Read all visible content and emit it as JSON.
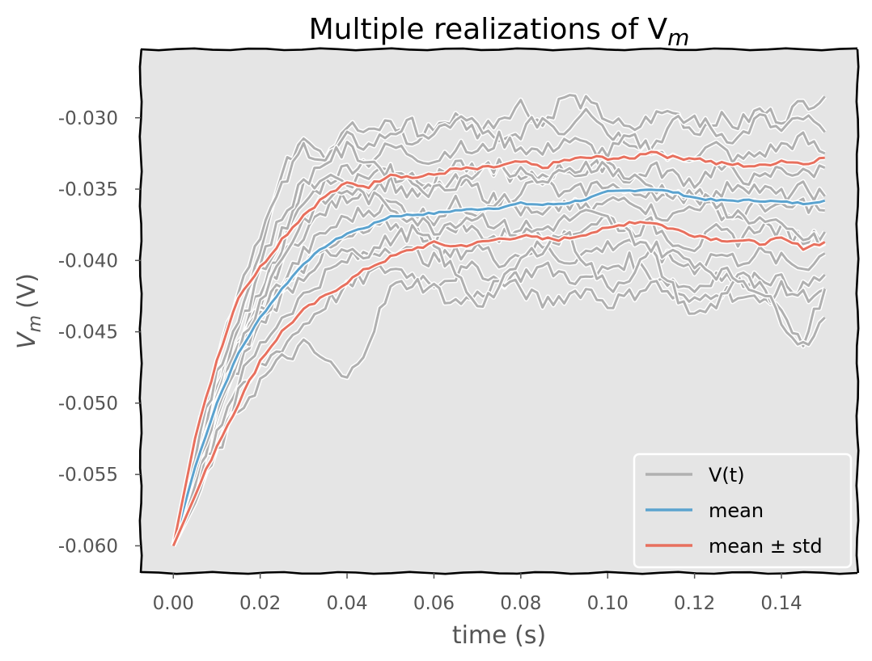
{
  "chart_data": {
    "type": "line",
    "title": "Multiple realizations of V",
    "title_subscript": "m",
    "xlabel": "time (s)",
    "ylabel": "V",
    "ylabel_subscript": "m",
    "ylabel_unit": "(V)",
    "xlim": [
      -0.0075,
      0.1575
    ],
    "ylim": [
      -0.0619,
      -0.0252
    ],
    "xticks": [
      0.0,
      0.02,
      0.04,
      0.06,
      0.08,
      0.1,
      0.12,
      0.14
    ],
    "xtick_labels": [
      "0.00",
      "0.02",
      "0.04",
      "0.06",
      "0.08",
      "0.10",
      "0.12",
      "0.14"
    ],
    "yticks": [
      -0.06,
      -0.055,
      -0.05,
      -0.045,
      -0.04,
      -0.035,
      -0.03
    ],
    "ytick_labels": [
      "-0.060",
      "-0.055",
      "-0.050",
      "-0.045",
      "-0.040",
      "-0.035",
      "-0.030"
    ],
    "grid": false,
    "legend_position": "lower-right",
    "colors": {
      "realization": "#b0b0b0",
      "mean": "#5ba3cf",
      "std": "#e8705e",
      "plot_bg": "#e5e5e5"
    },
    "legend": [
      "V(t)",
      "mean",
      "mean ± std"
    ],
    "x": [
      0.0,
      0.005,
      0.01,
      0.015,
      0.02,
      0.025,
      0.03,
      0.035,
      0.04,
      0.045,
      0.05,
      0.055,
      0.06,
      0.065,
      0.07,
      0.075,
      0.08,
      0.085,
      0.09,
      0.095,
      0.1,
      0.105,
      0.11,
      0.115,
      0.12,
      0.125,
      0.13,
      0.135,
      0.14,
      0.145,
      0.15
    ],
    "series": [
      {
        "name": "mean",
        "values": [
          -0.06,
          -0.0545,
          -0.05,
          -0.0465,
          -0.044,
          -0.042,
          -0.0402,
          -0.039,
          -0.0381,
          -0.0376,
          -0.0369,
          -0.0368,
          -0.0367,
          -0.0365,
          -0.0364,
          -0.0363,
          -0.036,
          -0.0361,
          -0.036,
          -0.0357,
          -0.0352,
          -0.0351,
          -0.035,
          -0.0352,
          -0.0356,
          -0.0358,
          -0.0358,
          -0.0358,
          -0.0359,
          -0.036,
          -0.0358
        ]
      },
      {
        "name": "mean + std",
        "values": [
          -0.06,
          -0.0525,
          -0.047,
          -0.0425,
          -0.0405,
          -0.0385,
          -0.0368,
          -0.0355,
          -0.0346,
          -0.0348,
          -0.0339,
          -0.0342,
          -0.034,
          -0.0336,
          -0.0336,
          -0.0334,
          -0.0331,
          -0.0335,
          -0.033,
          -0.0328,
          -0.0328,
          -0.0329,
          -0.0323,
          -0.0328,
          -0.0328,
          -0.0332,
          -0.0333,
          -0.0334,
          -0.033,
          -0.0332,
          -0.0328
        ]
      },
      {
        "name": "mean - std",
        "values": [
          -0.06,
          -0.0565,
          -0.053,
          -0.05,
          -0.047,
          -0.045,
          -0.0435,
          -0.0425,
          -0.0415,
          -0.0405,
          -0.0398,
          -0.0392,
          -0.0388,
          -0.039,
          -0.0388,
          -0.0385,
          -0.0383,
          -0.0385,
          -0.0385,
          -0.0381,
          -0.0378,
          -0.0373,
          -0.0373,
          -0.0378,
          -0.0382,
          -0.0385,
          -0.0386,
          -0.0388,
          -0.0385,
          -0.0391,
          -0.0387
        ]
      },
      {
        "values": [
          -0.06,
          -0.054,
          -0.049,
          -0.044,
          -0.039,
          -0.034,
          -0.031,
          -0.0325,
          -0.0305,
          -0.0312,
          -0.0302,
          -0.032,
          -0.0305,
          -0.03,
          -0.031,
          -0.03,
          -0.029,
          -0.0305,
          -0.0285,
          -0.029,
          -0.03,
          -0.031,
          -0.03,
          -0.0295,
          -0.031,
          -0.03,
          -0.0305,
          -0.0295,
          -0.03,
          -0.029,
          -0.0285
        ]
      },
      {
        "values": [
          -0.06,
          -0.053,
          -0.047,
          -0.042,
          -0.038,
          -0.035,
          -0.032,
          -0.033,
          -0.0315,
          -0.032,
          -0.031,
          -0.0305,
          -0.0315,
          -0.03,
          -0.0305,
          -0.032,
          -0.031,
          -0.03,
          -0.031,
          -0.029,
          -0.031,
          -0.0315,
          -0.032,
          -0.0305,
          -0.03,
          -0.031,
          -0.0315,
          -0.03,
          -0.031,
          -0.03,
          -0.031
        ]
      },
      {
        "values": [
          -0.06,
          -0.055,
          -0.05,
          -0.046,
          -0.042,
          -0.039,
          -0.036,
          -0.0345,
          -0.0335,
          -0.033,
          -0.032,
          -0.0325,
          -0.033,
          -0.032,
          -0.0325,
          -0.0315,
          -0.032,
          -0.0325,
          -0.0315,
          -0.032,
          -0.0325,
          -0.0315,
          -0.032,
          -0.033,
          -0.0325,
          -0.032,
          -0.033,
          -0.0325,
          -0.032,
          -0.0315,
          -0.0325
        ]
      },
      {
        "values": [
          -0.06,
          -0.0545,
          -0.0495,
          -0.045,
          -0.041,
          -0.038,
          -0.035,
          -0.034,
          -0.0345,
          -0.034,
          -0.0335,
          -0.034,
          -0.0345,
          -0.033,
          -0.034,
          -0.0335,
          -0.0345,
          -0.034,
          -0.0335,
          -0.034,
          -0.033,
          -0.0345,
          -0.0335,
          -0.034,
          -0.0345,
          -0.0335,
          -0.034,
          -0.0345,
          -0.0335,
          -0.034,
          -0.0335
        ]
      },
      {
        "values": [
          -0.06,
          -0.055,
          -0.0505,
          -0.0465,
          -0.043,
          -0.04,
          -0.038,
          -0.0365,
          -0.0355,
          -0.035,
          -0.0345,
          -0.0355,
          -0.035,
          -0.0345,
          -0.035,
          -0.036,
          -0.035,
          -0.0345,
          -0.0355,
          -0.035,
          -0.0345,
          -0.0355,
          -0.035,
          -0.036,
          -0.035,
          -0.0355,
          -0.0345,
          -0.035,
          -0.0355,
          -0.035,
          -0.0355
        ]
      },
      {
        "values": [
          -0.06,
          -0.0545,
          -0.05,
          -0.046,
          -0.0435,
          -0.0415,
          -0.0395,
          -0.038,
          -0.037,
          -0.0365,
          -0.036,
          -0.0365,
          -0.037,
          -0.036,
          -0.0365,
          -0.0355,
          -0.0365,
          -0.037,
          -0.036,
          -0.0365,
          -0.036,
          -0.0355,
          -0.0365,
          -0.037,
          -0.036,
          -0.0365,
          -0.037,
          -0.036,
          -0.0365,
          -0.036,
          -0.0365
        ]
      },
      {
        "values": [
          -0.06,
          -0.0555,
          -0.051,
          -0.0475,
          -0.0445,
          -0.0425,
          -0.041,
          -0.0395,
          -0.0385,
          -0.038,
          -0.0375,
          -0.038,
          -0.0385,
          -0.0375,
          -0.038,
          -0.0385,
          -0.0375,
          -0.038,
          -0.0385,
          -0.0375,
          -0.037,
          -0.038,
          -0.0375,
          -0.0385,
          -0.039,
          -0.038,
          -0.0385,
          -0.0375,
          -0.038,
          -0.0385,
          -0.038
        ]
      },
      {
        "values": [
          -0.06,
          -0.056,
          -0.052,
          -0.0485,
          -0.046,
          -0.044,
          -0.0425,
          -0.041,
          -0.04,
          -0.0395,
          -0.039,
          -0.0395,
          -0.04,
          -0.0395,
          -0.039,
          -0.04,
          -0.0395,
          -0.039,
          -0.04,
          -0.0395,
          -0.039,
          -0.0385,
          -0.0395,
          -0.04,
          -0.0405,
          -0.0395,
          -0.04,
          -0.0395,
          -0.04,
          -0.0405,
          -0.0395
        ]
      },
      {
        "values": [
          -0.06,
          -0.0565,
          -0.053,
          -0.0495,
          -0.0475,
          -0.046,
          -0.0445,
          -0.043,
          -0.042,
          -0.041,
          -0.0405,
          -0.041,
          -0.0415,
          -0.041,
          -0.0405,
          -0.0415,
          -0.041,
          -0.0405,
          -0.041,
          -0.0415,
          -0.0405,
          -0.04,
          -0.041,
          -0.0415,
          -0.042,
          -0.041,
          -0.0415,
          -0.041,
          -0.0415,
          -0.042,
          -0.041
        ]
      },
      {
        "values": [
          -0.06,
          -0.057,
          -0.0535,
          -0.0505,
          -0.0485,
          -0.047,
          -0.046,
          -0.047,
          -0.0485,
          -0.0455,
          -0.042,
          -0.0415,
          -0.042,
          -0.043,
          -0.0425,
          -0.0415,
          -0.042,
          -0.043,
          -0.0425,
          -0.042,
          -0.043,
          -0.0425,
          -0.0415,
          -0.0425,
          -0.043,
          -0.042,
          -0.0425,
          -0.043,
          -0.042,
          -0.0425,
          -0.042
        ]
      },
      {
        "values": [
          -0.06,
          -0.056,
          -0.051,
          -0.047,
          -0.044,
          -0.042,
          -0.0405,
          -0.0395,
          -0.039,
          -0.0395,
          -0.0385,
          -0.038,
          -0.039,
          -0.041,
          -0.043,
          -0.042,
          -0.04,
          -0.039,
          -0.038,
          -0.04,
          -0.042,
          -0.041,
          -0.0395,
          -0.042,
          -0.044,
          -0.043,
          -0.041,
          -0.042,
          -0.044,
          -0.0455,
          -0.042
        ]
      },
      {
        "values": [
          -0.06,
          -0.0548,
          -0.0502,
          -0.0462,
          -0.0428,
          -0.0398,
          -0.0372,
          -0.0358,
          -0.035,
          -0.0356,
          -0.0362,
          -0.037,
          -0.0378,
          -0.0372,
          -0.0368,
          -0.0375,
          -0.0382,
          -0.0378,
          -0.0372,
          -0.0368,
          -0.0372,
          -0.0382,
          -0.039,
          -0.0396,
          -0.04,
          -0.0408,
          -0.0412,
          -0.042,
          -0.044,
          -0.046,
          -0.044
        ]
      },
      {
        "values": [
          -0.06,
          -0.0535,
          -0.0482,
          -0.0438,
          -0.04,
          -0.037,
          -0.0345,
          -0.033,
          -0.0322,
          -0.033,
          -0.0338,
          -0.0345,
          -0.0352,
          -0.0345,
          -0.0338,
          -0.0332,
          -0.034,
          -0.0345,
          -0.034,
          -0.0332,
          -0.0335,
          -0.0342,
          -0.0348,
          -0.0352,
          -0.0356,
          -0.0362,
          -0.0368,
          -0.0372,
          -0.0378,
          -0.0384,
          -0.0388
        ]
      }
    ]
  }
}
